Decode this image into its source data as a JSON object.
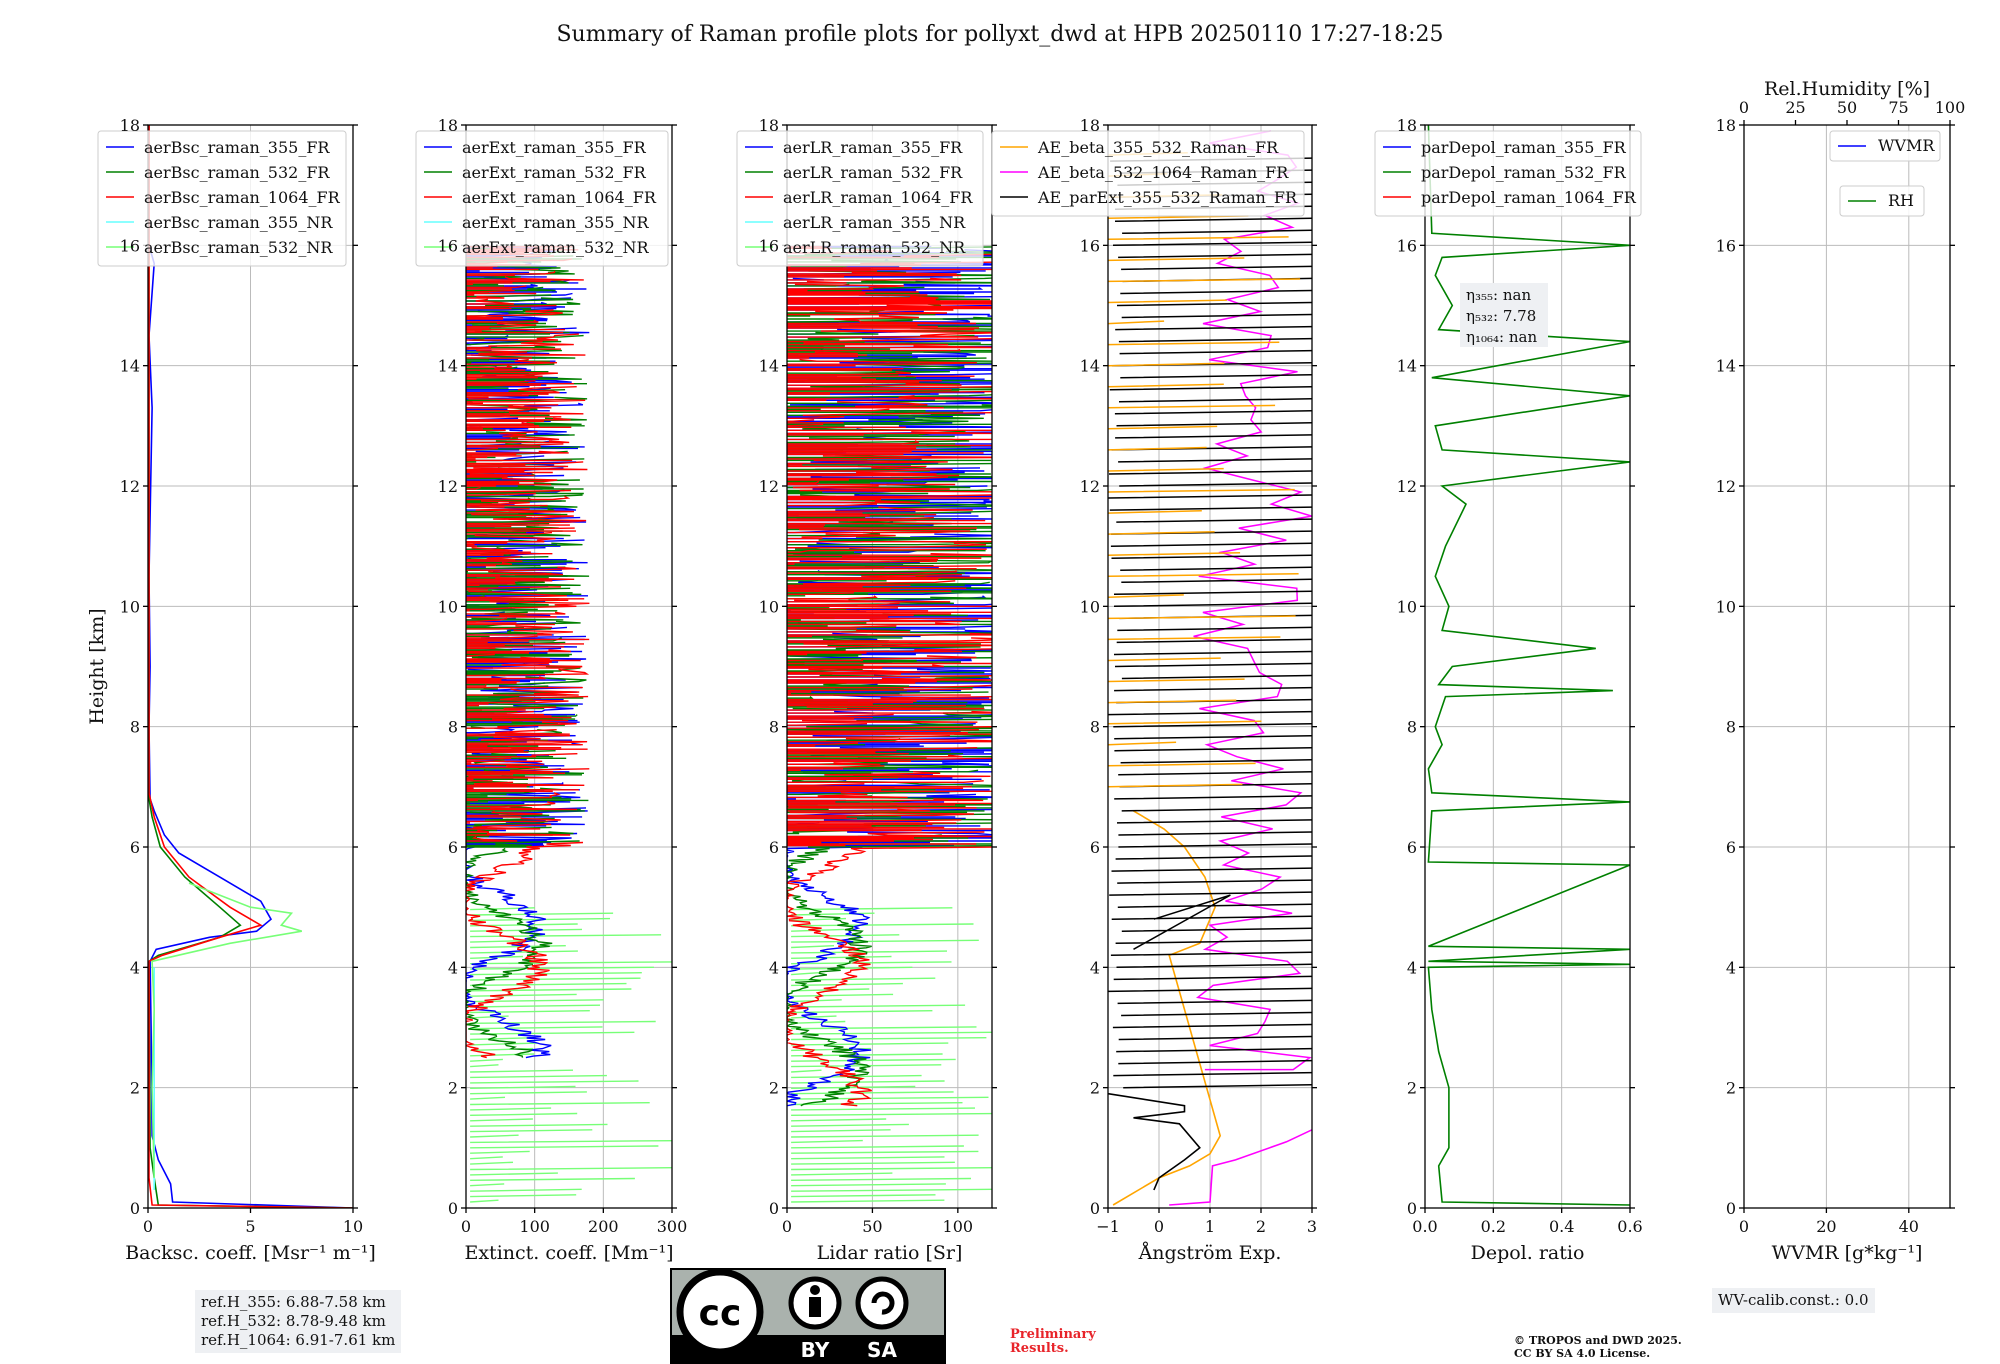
{
  "title": "Summary of Raman profile plots for pollyxt_dwd at HPB 20250110 17:27-18:25",
  "colors": {
    "c355": "#0000ff",
    "c532": "#008000",
    "c1064": "#ff0000",
    "c355nr": "#66ffff",
    "c532nr": "#77ff77",
    "orange": "#ffa500",
    "magenta": "#ff00ff",
    "black": "#000000",
    "grid": "#bbbbbb",
    "infobg": "#eef0f3",
    "preliminary": "#e8242a"
  },
  "y_axis": {
    "label": "Height [km]",
    "ticks": [
      "0",
      "2",
      "4",
      "6",
      "8",
      "10",
      "12",
      "14",
      "16",
      "18"
    ]
  },
  "chart_data": [
    {
      "type": "line",
      "panel": "backscatter",
      "xlabel": "Backsc. coeff. [Msr⁻¹ m⁻¹]",
      "xlim": [
        0,
        10
      ],
      "ylim": [
        0,
        18
      ],
      "xticks": [
        "0",
        "5",
        "10"
      ],
      "legend": [
        "aerBsc_raman_355_FR",
        "aerBsc_raman_532_FR",
        "aerBsc_raman_1064_FR",
        "aerBsc_raman_355_NR",
        "aerBsc_raman_532_NR"
      ],
      "series": [
        {
          "name": "aerBsc_raman_355_FR",
          "color": "#0000ff",
          "points": [
            [
              10,
              0
            ],
            [
              1.2,
              0.1
            ],
            [
              1.1,
              0.4
            ],
            [
              0.5,
              0.8
            ],
            [
              0.2,
              1.2
            ],
            [
              0.15,
              3
            ],
            [
              0.1,
              4.1
            ],
            [
              0.4,
              4.3
            ],
            [
              3,
              4.5
            ],
            [
              5.3,
              4.6
            ],
            [
              6,
              4.8
            ],
            [
              5.5,
              5.1
            ],
            [
              3.5,
              5.5
            ],
            [
              1.5,
              5.9
            ],
            [
              0.8,
              6.2
            ],
            [
              0.3,
              6.6
            ],
            [
              0.1,
              6.8
            ],
            [
              0.05,
              8
            ],
            [
              0.1,
              9
            ],
            [
              0.05,
              10.5
            ],
            [
              0.2,
              13.3
            ],
            [
              0.05,
              14.5
            ],
            [
              0.3,
              15.7
            ],
            [
              0.05,
              16
            ],
            [
              0.05,
              18
            ]
          ]
        },
        {
          "name": "aerBsc_raman_532_FR",
          "color": "#008000",
          "points": [
            [
              10,
              0
            ],
            [
              0.5,
              0.05
            ],
            [
              0.3,
              0.5
            ],
            [
              0.1,
              1
            ],
            [
              0.05,
              4.1
            ],
            [
              0.5,
              4.2
            ],
            [
              3.5,
              4.5
            ],
            [
              4.5,
              4.7
            ],
            [
              3.5,
              5
            ],
            [
              1.8,
              5.5
            ],
            [
              0.6,
              6
            ],
            [
              0.2,
              6.5
            ],
            [
              0.05,
              6.8
            ],
            [
              0.05,
              18
            ]
          ]
        },
        {
          "name": "aerBsc_raman_1064_FR",
          "color": "#ff0000",
          "points": [
            [
              10,
              0
            ],
            [
              0.2,
              0.05
            ],
            [
              0.05,
              0.5
            ],
            [
              0.05,
              4.1
            ],
            [
              0.7,
              4.2
            ],
            [
              3.5,
              4.5
            ],
            [
              5.5,
              4.7
            ],
            [
              4,
              5
            ],
            [
              2,
              5.5
            ],
            [
              0.8,
              6
            ],
            [
              0.3,
              6.5
            ],
            [
              0.05,
              6.9
            ],
            [
              0.05,
              18
            ]
          ]
        },
        {
          "name": "aerBsc_raman_355_NR",
          "color": "#66ffff",
          "points": [
            [
              0.3,
              0.3
            ],
            [
              0.3,
              4
            ]
          ]
        },
        {
          "name": "aerBsc_raman_532_NR",
          "color": "#77ff77",
          "points": [
            [
              0.3,
              0.5
            ],
            [
              0.2,
              2
            ],
            [
              0.3,
              3.3
            ],
            [
              0.2,
              4.1
            ],
            [
              4,
              4.4
            ],
            [
              7.5,
              4.6
            ],
            [
              6.5,
              4.7
            ],
            [
              7,
              4.9
            ],
            [
              5,
              5
            ],
            [
              2,
              5.4
            ]
          ]
        }
      ]
    },
    {
      "type": "line",
      "panel": "extinction",
      "xlabel": "Extinct. coeff. [Mm⁻¹]",
      "xlim": [
        0,
        300
      ],
      "ylim": [
        0,
        18
      ],
      "xticks": [
        "0",
        "100",
        "200",
        "300"
      ],
      "legend": [
        "aerExt_raman_355_FR",
        "aerExt_raman_532_FR",
        "aerExt_raman_1064_FR",
        "aerExt_raman_355_NR",
        "aerExt_raman_532_NR"
      ],
      "series_count": 5
    },
    {
      "type": "line",
      "panel": "lidar_ratio",
      "xlabel": "Lidar ratio [Sr]",
      "xlim": [
        0,
        120
      ],
      "ylim": [
        0,
        18
      ],
      "xticks": [
        "0",
        "50",
        "100"
      ],
      "legend": [
        "aerLR_raman_355_FR",
        "aerLR_raman_532_FR",
        "aerLR_raman_1064_FR",
        "aerLR_raman_355_NR",
        "aerLR_raman_532_NR"
      ],
      "series_count": 5
    },
    {
      "type": "line",
      "panel": "angstrom",
      "xlabel": "Ångström Exp.",
      "xlim": [
        -1,
        3
      ],
      "ylim": [
        0,
        18
      ],
      "xticks": [
        "−1",
        "0",
        "1",
        "2",
        "3"
      ],
      "legend": [
        "AE_beta_355_532_Raman_FR",
        "AE_beta_532_1064_Raman_FR",
        "AE_parExt_355_532_Raman_FR"
      ],
      "series": [
        {
          "name": "AE_beta_532_1064_Raman_FR",
          "color": "#ff00ff",
          "points": [
            [
              0.2,
              0.05
            ],
            [
              1,
              0.1
            ],
            [
              1.05,
              0.7
            ],
            [
              1.5,
              0.8
            ],
            [
              2.5,
              1.1
            ],
            [
              3,
              1.3
            ]
          ]
        },
        {
          "name": "AE_beta_355_532_Raman_FR",
          "color": "#ffa500",
          "points": [
            [
              -0.9,
              0.05
            ],
            [
              0,
              0.5
            ],
            [
              0.6,
              0.7
            ],
            [
              1,
              0.9
            ],
            [
              1.2,
              1.2
            ],
            [
              0.2,
              4.2
            ],
            [
              0.8,
              4.4
            ],
            [
              1.1,
              5
            ],
            [
              0.9,
              5.5
            ],
            [
              0.5,
              6
            ],
            [
              0.1,
              6.3
            ],
            [
              -0.5,
              6.6
            ]
          ]
        },
        {
          "name": "AE_parExt_355_532_Raman_FR",
          "color": "#000000",
          "points": [
            [
              -0.1,
              0.3
            ],
            [
              0,
              0.5
            ],
            [
              0.5,
              0.8
            ],
            [
              0.8,
              1
            ],
            [
              0.4,
              1.4
            ],
            [
              -0.5,
              1.5
            ],
            [
              0.5,
              1.6
            ],
            [
              0.5,
              1.7
            ],
            [
              -1,
              1.9
            ]
          ]
        }
      ]
    },
    {
      "type": "line",
      "panel": "depolarization",
      "xlabel": "Depol. ratio",
      "xlim": [
        0,
        0.6
      ],
      "ylim": [
        0,
        18
      ],
      "xticks": [
        "0.0",
        "0.2",
        "0.4",
        "0.6"
      ],
      "legend": [
        "parDepol_raman_355_FR",
        "parDepol_raman_532_FR",
        "parDepol_raman_1064_FR"
      ],
      "annotation": {
        "eta355": "η₃₅₅: nan",
        "eta532": "η₅₃₂: 7.78",
        "eta1064": "η₁₀₆₄: nan"
      },
      "series": [
        {
          "name": "parDepol_raman_532_FR",
          "color": "#008000",
          "points": [
            [
              0.6,
              0.05
            ],
            [
              0.05,
              0.1
            ],
            [
              0.04,
              0.7
            ],
            [
              0.07,
              1
            ],
            [
              0.07,
              2
            ],
            [
              0.04,
              2.6
            ],
            [
              0.02,
              3.3
            ],
            [
              0.01,
              4
            ],
            [
              0.6,
              4.05
            ],
            [
              0.01,
              4.1
            ],
            [
              0.6,
              4.3
            ],
            [
              0.01,
              4.35
            ],
            [
              0.6,
              5.7
            ],
            [
              0.01,
              5.75
            ],
            [
              0.02,
              6.6
            ],
            [
              0.6,
              6.75
            ],
            [
              0.02,
              6.9
            ],
            [
              0.01,
              7.3
            ],
            [
              0.05,
              7.7
            ],
            [
              0.03,
              8
            ],
            [
              0.06,
              8.5
            ],
            [
              0.55,
              8.6
            ],
            [
              0.04,
              8.7
            ],
            [
              0.08,
              9
            ],
            [
              0.5,
              9.3
            ],
            [
              0.05,
              9.6
            ],
            [
              0.07,
              10
            ],
            [
              0.03,
              10.5
            ],
            [
              0.06,
              11
            ],
            [
              0.12,
              11.7
            ],
            [
              0.05,
              12
            ],
            [
              0.6,
              12.4
            ],
            [
              0.05,
              12.6
            ],
            [
              0.03,
              13
            ],
            [
              0.6,
              13.5
            ],
            [
              0.02,
              13.8
            ],
            [
              0.6,
              14.4
            ],
            [
              0.04,
              14.6
            ],
            [
              0.08,
              15
            ],
            [
              0.03,
              15.5
            ],
            [
              0.05,
              15.8
            ],
            [
              0.6,
              16
            ],
            [
              0.02,
              16.2
            ],
            [
              0.01,
              18
            ]
          ]
        }
      ]
    },
    {
      "type": "line",
      "panel": "wvmr",
      "xlabel": "WVMR [g*kg⁻¹]",
      "xlim": [
        0,
        50
      ],
      "ylim": [
        0,
        18
      ],
      "xticks": [
        "0",
        "20",
        "40"
      ],
      "top_axis": {
        "label": "Rel.Humidity [%]",
        "ticks": [
          "0",
          "25",
          "50",
          "75",
          "100"
        ]
      },
      "legend": [
        "WVMR",
        "RH"
      ],
      "series_count": 0
    }
  ],
  "info": {
    "ref_heights": [
      "ref.H_355: 6.88-7.58 km",
      "ref.H_532: 8.78-9.48 km",
      "ref.H_1064: 6.91-7.61 km"
    ],
    "wv_calib": "WV-calib.const.: 0.0",
    "preliminary": [
      "Preliminary",
      "Results."
    ],
    "copyright": [
      "© TROPOS and DWD 2025.",
      "CC BY SA 4.0 License."
    ],
    "license_badge": {
      "cc": "cc",
      "by": "BY",
      "sa": "SA"
    }
  }
}
